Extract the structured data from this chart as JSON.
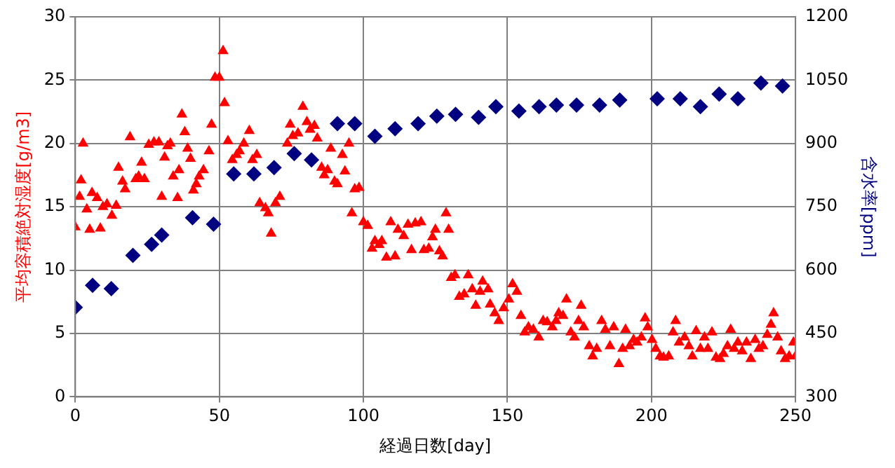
{
  "chart_data": {
    "type": "scatter",
    "xlabel": "経過日数[day]",
    "ylabel": "平均容積絶対湿度[g/m3]",
    "y2label": "含水率[ppm]",
    "xlim": [
      0,
      250
    ],
    "xticks": [
      0,
      50,
      100,
      150,
      200,
      250
    ],
    "ylim": [
      0,
      30
    ],
    "yticks": [
      0,
      5,
      10,
      15,
      20,
      25,
      30
    ],
    "y2lim": [
      300,
      1200
    ],
    "y2ticks": [
      300,
      450,
      600,
      750,
      900,
      1050,
      1200
    ],
    "grid": true,
    "legend": false,
    "series": [
      {
        "color": "#ff0000",
        "marker": "triangle",
        "x": [
          0,
          1.5,
          2,
          2.7,
          4,
          5,
          5.8,
          7.6,
          8.7,
          9.6,
          11,
          12.7,
          14.2,
          15,
          16.4,
          17.3,
          19,
          21,
          22,
          23,
          24,
          25.5,
          27.3,
          29,
          30,
          31,
          32,
          33,
          34,
          35.5,
          36,
          37,
          38,
          39,
          40,
          41,
          42,
          43,
          44.5,
          46.4,
          47.3,
          48.5,
          50,
          51.3,
          51.8,
          53,
          54.5,
          56,
          57,
          58.5,
          60.4,
          61.5,
          63,
          64,
          66,
          67,
          68,
          69.5,
          71,
          73.6,
          74.6,
          75.5,
          77.3,
          79,
          80.4,
          81.5,
          83,
          84,
          85.5,
          86.4,
          87.6,
          88.7,
          90,
          91,
          92.7,
          93.6,
          95,
          96,
          97,
          98.5,
          100,
          101.5,
          103,
          104,
          105.5,
          106.4,
          108,
          109.5,
          111,
          112,
          114,
          115.5,
          116.7,
          118,
          120,
          121,
          122.7,
          124,
          125,
          126.4,
          127.5,
          128.7,
          129.6,
          130.5,
          131.8,
          133.3,
          135,
          136.4,
          137.8,
          139,
          140.5,
          141.4,
          143.3,
          144,
          145.6,
          147,
          148.7,
          150.5,
          151.8,
          153.3,
          154.7,
          156,
          157.3,
          159,
          160.9,
          162.4,
          163.8,
          165.6,
          166.9,
          167.8,
          169.3,
          170.5,
          172,
          173.3,
          174.7,
          175.6,
          176.5,
          178.4,
          179.6,
          181,
          182.7,
          184,
          185.6,
          186.9,
          188.7,
          190,
          191,
          192.4,
          193.8,
          195,
          196.5,
          197.8,
          198.7,
          200.2,
          201.5,
          203,
          204.2,
          206,
          207.5,
          208.4,
          209.6,
          211.5,
          213,
          214.2,
          215.5,
          217,
          218.4,
          219.6,
          221,
          222.4,
          223.8,
          225,
          226.4,
          227.5,
          228.7,
          230,
          231.5,
          233,
          234.5,
          236,
          237.3,
          238.7,
          240.2,
          241.5,
          242.4,
          243.8,
          245,
          246.4,
          247.8,
          249.3,
          250
        ],
        "values": [
          13.4,
          15.8,
          17.1,
          20,
          14.8,
          13.2,
          16.1,
          15.7,
          13.3,
          15,
          15.2,
          14.3,
          15.1,
          18.1,
          17,
          16.4,
          20.5,
          17.2,
          17.4,
          18.5,
          17.2,
          19.9,
          20.1,
          20.1,
          15.8,
          18.9,
          19.8,
          20,
          17.4,
          15.7,
          17.9,
          22.3,
          20.9,
          19.6,
          18.8,
          16.3,
          16.8,
          17.4,
          17.9,
          19.4,
          21.5,
          25.2,
          25.2,
          27.3,
          23.2,
          20.2,
          18.7,
          19.1,
          19.4,
          20,
          21,
          18.7,
          19.1,
          15.3,
          14.9,
          14.5,
          12.9,
          15.3,
          15.8,
          20,
          21.5,
          20.6,
          20.8,
          22.9,
          21.7,
          21.1,
          21.4,
          20.4,
          18.1,
          17.5,
          17.9,
          19.6,
          17,
          16.8,
          19.1,
          17.8,
          20,
          14.5,
          16.4,
          16.5,
          13.8,
          13.5,
          11.7,
          12.3,
          12,
          12.3,
          11,
          13.8,
          11.1,
          13.2,
          12.7,
          13.6,
          11.6,
          13.7,
          13.8,
          11.6,
          11.7,
          12.6,
          13.2,
          11.5,
          11.1,
          14.5,
          13.2,
          9.4,
          9.6,
          7.9,
          8.1,
          9.6,
          8.5,
          7.2,
          8.3,
          9.1,
          8.5,
          7.3,
          6.6,
          6,
          7,
          7.7,
          8.9,
          8.3,
          6.4,
          5.1,
          5.5,
          5.3,
          4.7,
          6,
          5.9,
          5.5,
          6,
          6.6,
          6.4,
          7.7,
          5.1,
          4.7,
          6,
          7.2,
          5.5,
          4,
          3.2,
          3.8,
          6,
          5.3,
          4,
          5.5,
          2.6,
          3.8,
          5.3,
          4,
          4.5,
          4.3,
          4.7,
          6.2,
          5.5,
          4.5,
          3.8,
          3.2,
          3.1,
          3.2,
          5.1,
          6,
          4.3,
          4.7,
          4,
          3.2,
          5.2,
          3.8,
          4.7,
          3.8,
          5.1,
          3.1,
          3,
          3.4,
          4,
          5.3,
          3.8,
          4.3,
          3.6,
          4.3,
          3,
          4.5,
          3.8,
          4,
          4.9,
          5.7,
          6.6,
          4.7,
          3.6,
          3,
          3.2,
          4.3,
          3.2
        ]
      },
      {
        "color": "#000080",
        "marker": "diamond",
        "axis": "y2",
        "x": [
          0,
          6,
          12.5,
          20,
          26.5,
          30,
          40.7,
          48,
          55,
          62,
          69,
          76,
          82,
          91,
          97,
          104,
          111,
          119,
          125.5,
          132,
          140,
          146,
          154,
          161,
          167,
          174,
          182,
          189,
          202,
          210,
          217,
          223.5,
          230,
          238,
          245.5
        ],
        "values": [
          512,
          564,
          556,
          635,
          661,
          683,
          724,
          709,
          828,
          828,
          843,
          876,
          861,
          947,
          947,
          917,
          935,
          947,
          965,
          969,
          962,
          987,
          977,
          987,
          991,
          991,
          991,
          1003,
          1006,
          1006,
          987,
          1017,
          1006,
          1043,
          1036
        ]
      }
    ]
  }
}
